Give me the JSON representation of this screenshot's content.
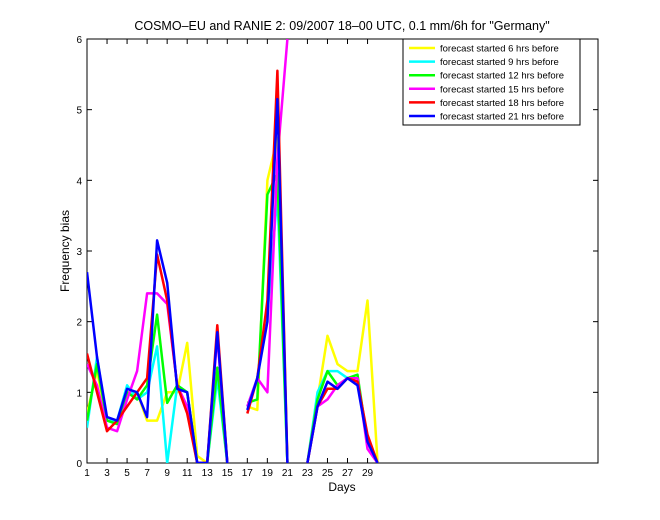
{
  "chart_data": {
    "type": "line",
    "title": "COSMO–EU and RANIE 2: 09/2007 18–00 UTC, 0.1 mm/6h for \"Germany\"",
    "xlabel": "Days",
    "ylabel": "Frequency bias",
    "xlim": [
      1,
      52
    ],
    "ylim": [
      0,
      6
    ],
    "x_ticks": [
      1,
      3,
      5,
      7,
      9,
      11,
      13,
      15,
      17,
      19,
      21,
      23,
      25,
      27,
      29
    ],
    "y_ticks": [
      0,
      1,
      2,
      3,
      4,
      5,
      6
    ],
    "grid": false,
    "legend_position": "top-right",
    "series": [
      {
        "name": "forecast started 6 hrs before",
        "color": "#ffff00",
        "values": [
          0.7,
          1.3,
          0.6,
          0.6,
          1.0,
          1.0,
          0.6,
          0.6,
          1.0,
          1.0,
          1.7,
          0.1,
          0.0,
          1.3,
          0.0,
          null,
          0.8,
          0.75,
          4.0,
          4.6,
          0.0,
          null,
          0.0,
          0.9,
          1.8,
          1.4,
          1.3,
          1.3,
          2.3,
          0.0
        ]
      },
      {
        "name": "forecast started 9 hrs before",
        "color": "#00ffff",
        "values": [
          0.5,
          1.5,
          0.6,
          0.6,
          1.1,
          0.9,
          1.0,
          1.65,
          0.0,
          1.1,
          1.0,
          0.0,
          0.0,
          1.2,
          0.0,
          null,
          0.8,
          1.2,
          2.1,
          3.8,
          0.0,
          null,
          0.0,
          1.0,
          1.3,
          1.3,
          1.2,
          1.2,
          0.3,
          0.0
        ]
      },
      {
        "name": "forecast started 12 hrs before",
        "color": "#00ff00",
        "values": [
          0.6,
          1.4,
          0.6,
          0.55,
          1.0,
          0.9,
          1.1,
          2.1,
          0.85,
          1.1,
          1.0,
          0.0,
          0.0,
          1.35,
          0.0,
          null,
          0.85,
          0.9,
          3.8,
          4.1,
          0.0,
          null,
          0.0,
          0.9,
          1.3,
          1.1,
          1.2,
          1.25,
          0.3,
          0.0
        ]
      },
      {
        "name": "forecast started 15 hrs before",
        "color": "#ff00ff",
        "values": [
          1.4,
          1.1,
          0.5,
          0.45,
          0.9,
          1.3,
          2.4,
          2.4,
          2.25,
          1.1,
          0.8,
          0.0,
          0.0,
          1.8,
          0.0,
          null,
          0.8,
          1.2,
          1.0,
          4.3,
          6.0,
          null,
          0.0,
          0.8,
          0.9,
          1.1,
          1.2,
          1.2,
          0.2,
          0.0
        ]
      },
      {
        "name": "forecast started 18 hrs before",
        "color": "#ff0000",
        "values": [
          1.55,
          1.0,
          0.45,
          0.6,
          0.8,
          1.0,
          1.2,
          2.95,
          2.3,
          1.1,
          0.7,
          0.0,
          0.0,
          1.95,
          0.0,
          null,
          0.7,
          1.2,
          2.3,
          5.55,
          0.0,
          null,
          0.0,
          0.8,
          1.05,
          1.05,
          1.2,
          1.15,
          0.4,
          0.0
        ]
      },
      {
        "name": "forecast started 21 hrs before",
        "color": "#0000ff",
        "values": [
          2.7,
          1.5,
          0.65,
          0.6,
          1.05,
          1.0,
          0.65,
          3.15,
          2.55,
          1.05,
          1.0,
          0.0,
          0.0,
          1.85,
          0.0,
          null,
          0.75,
          1.2,
          2.0,
          5.15,
          0.0,
          null,
          0.0,
          0.8,
          1.15,
          1.05,
          1.2,
          1.1,
          0.3,
          0.0
        ]
      }
    ]
  }
}
